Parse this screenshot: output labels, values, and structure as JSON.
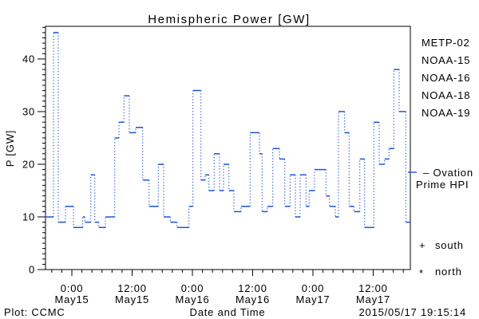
{
  "title": "Hemispheric Power [GW]",
  "y_axis": {
    "label": "P [GW]"
  },
  "x_axis": {
    "label": "Date and Time"
  },
  "legend": {
    "satellites": [
      {
        "label": "METP-02",
        "color": "#000000"
      },
      {
        "label": "NOAA-15",
        "color": "#2b2bff"
      },
      {
        "label": "NOAA-16",
        "color": "#33bbff"
      },
      {
        "label": "NOAA-18",
        "color": "#7dec89"
      },
      {
        "label": "NOAA-19",
        "color": "#ff9f1f"
      }
    ],
    "model_line1": "– Ovation",
    "model_line2": "Prime HPI",
    "model_color": "#2253d4",
    "south_marker": "+",
    "south_label": "south",
    "north_marker": "*",
    "north_label": "north"
  },
  "footer": {
    "plot_credit": "Plot: CCMC",
    "timestamp": "2015/05/17 19:15:14"
  },
  "chart_data": {
    "type": "line",
    "subtype": "step-post",
    "title": "Hemispheric Power [GW]",
    "xlabel": "Date and Time",
    "ylabel": "P [GW]",
    "series_name": "Ovation Prime HPI",
    "line_color": "#2253d4",
    "x_unit": "hours since 2015-05-15 00:00 UT",
    "xlim": [
      -5.25,
      67.4
    ],
    "ylim": [
      0,
      46.2
    ],
    "grid": false,
    "y_major_ticks": [
      {
        "p": 0,
        "label": "0"
      },
      {
        "p": 10,
        "label": "10"
      },
      {
        "p": 20,
        "label": "20"
      },
      {
        "p": 30,
        "label": "30"
      },
      {
        "p": 40,
        "label": "40"
      }
    ],
    "y_minor_step": 1,
    "x_minor_step": 2,
    "x_major_ticks": [
      {
        "t": 0,
        "time": "0:00",
        "date": "May15"
      },
      {
        "t": 12,
        "time": "12:00",
        "date": "May15"
      },
      {
        "t": 24,
        "time": "0:00",
        "date": "May16"
      },
      {
        "t": 36,
        "time": "12:00",
        "date": "May16"
      },
      {
        "t": 48,
        "time": "0:00",
        "date": "May17"
      },
      {
        "t": 60,
        "time": "12:00",
        "date": "May17"
      }
    ],
    "t_end": 67.4,
    "points": [
      [
        -5.25,
        10
      ],
      [
        -3.66,
        45
      ],
      [
        -2.7,
        9
      ],
      [
        -1.27,
        12
      ],
      [
        0.32,
        8
      ],
      [
        2.18,
        10
      ],
      [
        2.6,
        9
      ],
      [
        3.77,
        18
      ],
      [
        4.56,
        9
      ],
      [
        5.36,
        8
      ],
      [
        6.68,
        10
      ],
      [
        8.53,
        25
      ],
      [
        9.38,
        28
      ],
      [
        10.38,
        33
      ],
      [
        11.44,
        26
      ],
      [
        12.72,
        27
      ],
      [
        14.1,
        17
      ],
      [
        15.37,
        12
      ],
      [
        17.21,
        20
      ],
      [
        18.28,
        10
      ],
      [
        19.6,
        9
      ],
      [
        20.93,
        8
      ],
      [
        23.32,
        12
      ],
      [
        24.11,
        34
      ],
      [
        25.7,
        17
      ],
      [
        26.54,
        18
      ],
      [
        27.29,
        15
      ],
      [
        28.34,
        22
      ],
      [
        29.4,
        15
      ],
      [
        30.2,
        20
      ],
      [
        31.26,
        15
      ],
      [
        32.27,
        11
      ],
      [
        33.7,
        12
      ],
      [
        35.49,
        26
      ],
      [
        37.35,
        22
      ],
      [
        37.88,
        11
      ],
      [
        38.94,
        12
      ],
      [
        40.01,
        23
      ],
      [
        41.33,
        21
      ],
      [
        42.39,
        12
      ],
      [
        43.44,
        18
      ],
      [
        44.51,
        10
      ],
      [
        45.46,
        18
      ],
      [
        46.62,
        12
      ],
      [
        47.26,
        15
      ],
      [
        48.32,
        19
      ],
      [
        50.6,
        14
      ],
      [
        51.3,
        12
      ],
      [
        52.46,
        10
      ],
      [
        53.09,
        30
      ],
      [
        54.32,
        26
      ],
      [
        55.21,
        12
      ],
      [
        56.16,
        11
      ],
      [
        57.34,
        21
      ],
      [
        58.29,
        8
      ],
      [
        60.13,
        28
      ],
      [
        61.2,
        20
      ],
      [
        62.26,
        21
      ],
      [
        63.15,
        23
      ],
      [
        64.11,
        38
      ],
      [
        65.17,
        30
      ],
      [
        66.49,
        9
      ]
    ]
  }
}
